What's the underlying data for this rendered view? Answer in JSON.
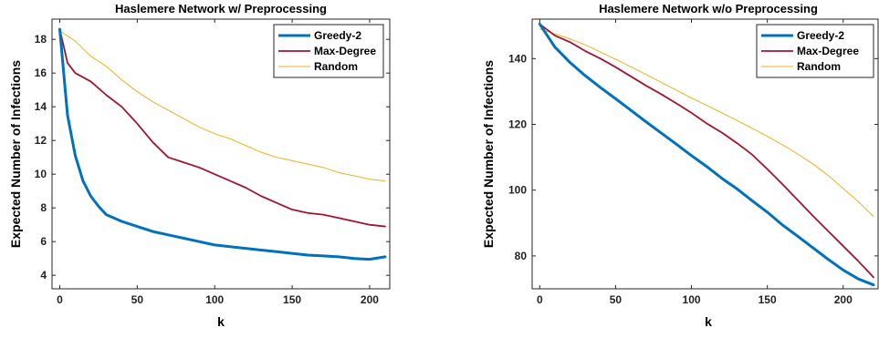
{
  "chart_data": [
    {
      "type": "line",
      "title": "Haslemere Network w/ Preprocessing",
      "xlabel": "k",
      "ylabel": "Expected Number of Infections",
      "xlim": [
        -5,
        213
      ],
      "ylim": [
        3.2,
        19.2
      ],
      "xticks": [
        0,
        50,
        100,
        150,
        200
      ],
      "yticks": [
        4,
        6,
        8,
        10,
        12,
        14,
        16,
        18
      ],
      "legend_position": "top-right",
      "series": [
        {
          "name": "Greedy-2",
          "color": "#0072BD",
          "width": 3,
          "x": [
            0,
            5,
            10,
            15,
            20,
            25,
            30,
            40,
            50,
            60,
            70,
            80,
            90,
            100,
            110,
            120,
            130,
            140,
            150,
            160,
            170,
            180,
            190,
            200,
            210
          ],
          "values": [
            18.6,
            13.5,
            11.1,
            9.6,
            8.7,
            8.1,
            7.6,
            7.2,
            6.9,
            6.6,
            6.4,
            6.2,
            6.0,
            5.8,
            5.7,
            5.6,
            5.5,
            5.4,
            5.3,
            5.2,
            5.15,
            5.1,
            5.0,
            4.95,
            5.1
          ]
        },
        {
          "name": "Max-Degree",
          "color": "#A2142F",
          "width": 1.8,
          "x": [
            0,
            5,
            10,
            20,
            30,
            40,
            50,
            60,
            70,
            80,
            90,
            100,
            110,
            120,
            130,
            140,
            150,
            160,
            170,
            180,
            190,
            200,
            210
          ],
          "values": [
            18.6,
            16.6,
            16.0,
            15.5,
            14.7,
            14.0,
            13.0,
            11.9,
            11.0,
            10.7,
            10.4,
            10.0,
            9.6,
            9.2,
            8.7,
            8.3,
            7.9,
            7.7,
            7.6,
            7.4,
            7.2,
            7.0,
            6.9
          ]
        },
        {
          "name": "Random",
          "color": "#EDB120",
          "width": 1,
          "x": [
            0,
            10,
            20,
            30,
            40,
            50,
            60,
            70,
            80,
            90,
            100,
            110,
            120,
            130,
            140,
            150,
            160,
            170,
            180,
            190,
            200,
            210
          ],
          "values": [
            18.5,
            17.9,
            17.0,
            16.4,
            15.6,
            14.9,
            14.3,
            13.8,
            13.3,
            12.8,
            12.4,
            12.1,
            11.7,
            11.3,
            11.0,
            10.8,
            10.6,
            10.4,
            10.1,
            9.9,
            9.7,
            9.6
          ]
        }
      ]
    },
    {
      "type": "line",
      "title": "Haslemere Network w/o Preprocessing",
      "xlabel": "k",
      "ylabel": "Expected Number of Infections",
      "xlim": [
        -5,
        223
      ],
      "ylim": [
        70,
        152
      ],
      "xticks": [
        0,
        50,
        100,
        150,
        200
      ],
      "yticks": [
        80,
        100,
        120,
        140
      ],
      "legend_position": "top-right",
      "series": [
        {
          "name": "Greedy-2",
          "color": "#0072BD",
          "width": 3,
          "x": [
            0,
            10,
            20,
            30,
            40,
            50,
            60,
            70,
            80,
            90,
            100,
            110,
            120,
            130,
            140,
            150,
            160,
            170,
            180,
            190,
            200,
            210,
            220
          ],
          "values": [
            150.5,
            143.5,
            138.8,
            134.8,
            131.2,
            127.8,
            124.3,
            120.8,
            117.4,
            114.0,
            110.5,
            107.2,
            103.6,
            100.4,
            96.8,
            93.3,
            89.4,
            86.0,
            82.5,
            79.0,
            75.7,
            73.0,
            71.2
          ]
        },
        {
          "name": "Max-Degree",
          "color": "#A2142F",
          "width": 1.8,
          "x": [
            0,
            10,
            20,
            30,
            40,
            50,
            60,
            70,
            80,
            90,
            100,
            110,
            120,
            130,
            140,
            150,
            160,
            170,
            180,
            190,
            200,
            210,
            220
          ],
          "values": [
            150.5,
            147.0,
            145.0,
            142.3,
            140.0,
            137.4,
            134.6,
            131.8,
            129.2,
            126.4,
            123.5,
            120.3,
            117.5,
            114.3,
            110.8,
            106.4,
            101.8,
            97.0,
            92.2,
            87.6,
            83.0,
            78.4,
            73.5
          ]
        },
        {
          "name": "Random",
          "color": "#EDB120",
          "width": 1,
          "x": [
            0,
            10,
            20,
            30,
            40,
            50,
            60,
            70,
            80,
            90,
            100,
            110,
            120,
            130,
            140,
            150,
            160,
            170,
            180,
            190,
            200,
            210,
            220
          ],
          "values": [
            149.0,
            147.5,
            146.0,
            144.2,
            142.0,
            139.8,
            137.5,
            135.2,
            132.8,
            130.4,
            128.0,
            125.8,
            123.5,
            121.2,
            118.8,
            116.4,
            113.8,
            111.0,
            108.0,
            104.5,
            100.5,
            96.5,
            92.0
          ]
        }
      ]
    }
  ]
}
